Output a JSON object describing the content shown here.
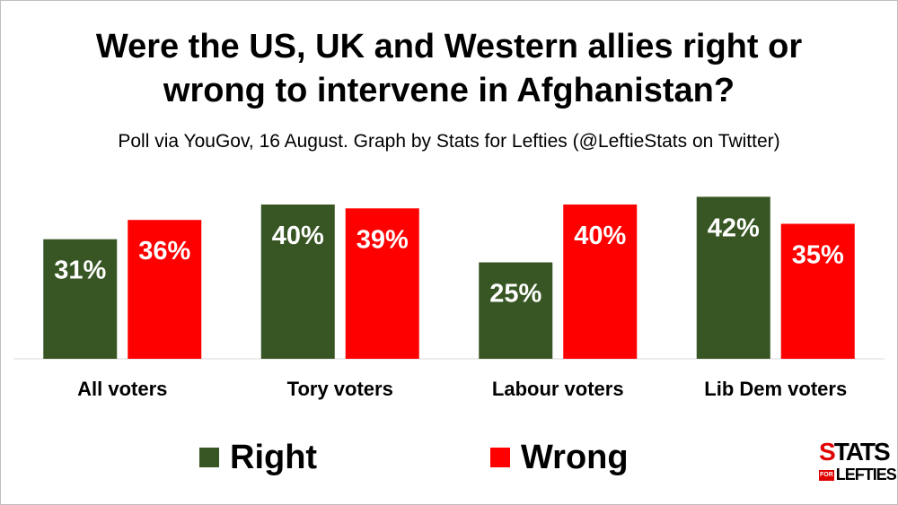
{
  "chart_data": {
    "type": "bar",
    "title_line1": "Were the US, UK and Western allies right or",
    "title_line2": "wrong to intervene in Afghanistan?",
    "subtitle": "Poll via YouGov, 16 August. Graph by Stats for Lefties (@LeftieStats on Twitter)",
    "categories": [
      "All voters",
      "Tory voters",
      "Labour voters",
      "Lib Dem voters"
    ],
    "series": [
      {
        "name": "Right",
        "color": "#375623",
        "values": [
          31,
          40,
          25,
          42
        ],
        "labels": [
          "31%",
          "40%",
          "25%",
          "42%"
        ]
      },
      {
        "name": "Wrong",
        "color": "#ff0000",
        "values": [
          36,
          39,
          40,
          35
        ],
        "labels": [
          "36%",
          "39%",
          "40%",
          "35%"
        ]
      }
    ],
    "ylim": [
      0,
      45
    ],
    "grid": false,
    "legend_position": "bottom"
  },
  "logo": {
    "top": "STATS",
    "small": "FOR",
    "bottom": "LEFTIES"
  }
}
